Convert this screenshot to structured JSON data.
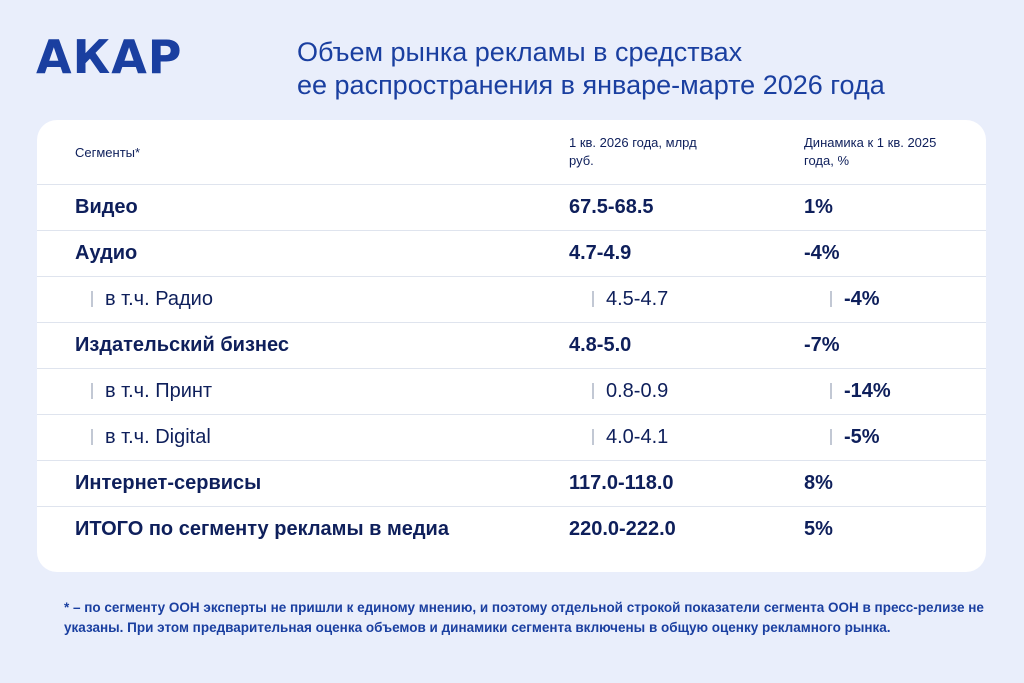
{
  "logo": "АКАР",
  "title": {
    "line1": "Объем рынка рекламы в средствах",
    "line2": "ее распространения в январе-марте 2026 года"
  },
  "table": {
    "headers": {
      "segment": "Сегменты*",
      "value": "1 кв. 2026 года, млрд руб.",
      "dynamics": "Динамика к 1 кв. 2025 года, %"
    },
    "rows": [
      {
        "segment": "Видео",
        "value": "67.5-68.5",
        "dynamics": "1%"
      },
      {
        "segment": "Аудио",
        "value": "4.7-4.9",
        "dynamics": "-4%"
      },
      {
        "segment": "в т.ч. Радио",
        "value": "4.5-4.7",
        "dynamics": "-4%"
      },
      {
        "segment": "Издательский бизнес",
        "value": "4.8-5.0",
        "dynamics": "-7%"
      },
      {
        "segment": "в т.ч. Принт",
        "value": "0.8-0.9",
        "dynamics": "-14%"
      },
      {
        "segment": "в т.ч. Digital",
        "value": "4.0-4.1",
        "dynamics": "-5%"
      },
      {
        "segment": "Интернет-сервисы",
        "value": "117.0-118.0",
        "dynamics": "8%"
      },
      {
        "segment": "ИТОГО по сегменту рекламы в медиа",
        "value": "220.0-222.0",
        "dynamics": "5%"
      }
    ]
  },
  "footnote": "* – по сегменту OOH эксперты не пришли к единому мнению, и поэтому отдельной строкой показатели сегмента OOH в пресс-релизе не указаны. При этом предварительная оценка объемов и динамики сегмента включены в общую оценку рекламного рынка.",
  "colors": {
    "background": "#e9eefb",
    "brand": "#1a3fa0",
    "text": "#0e1f5b",
    "card": "#ffffff"
  }
}
